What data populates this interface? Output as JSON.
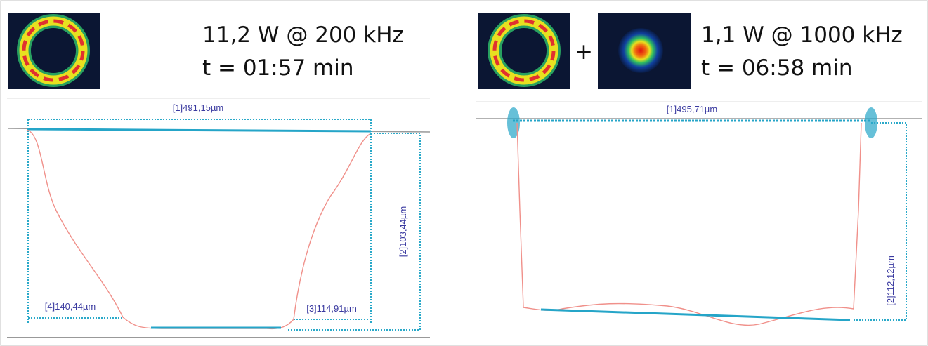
{
  "panels": [
    {
      "power": "11,2 W @ 200 kHz",
      "time": "t = 01:57 min",
      "measurements": [
        "[1]491,15µm",
        "[2]103,44µm",
        "[3]114,91µm",
        "[4]140,44µm"
      ]
    },
    {
      "plus": "+",
      "power": "1,1 W @ 1000 kHz",
      "time": "t = 06:58 min",
      "measurements": [
        "[1]495,71µm",
        "[2]112,12µm"
      ]
    }
  ]
}
